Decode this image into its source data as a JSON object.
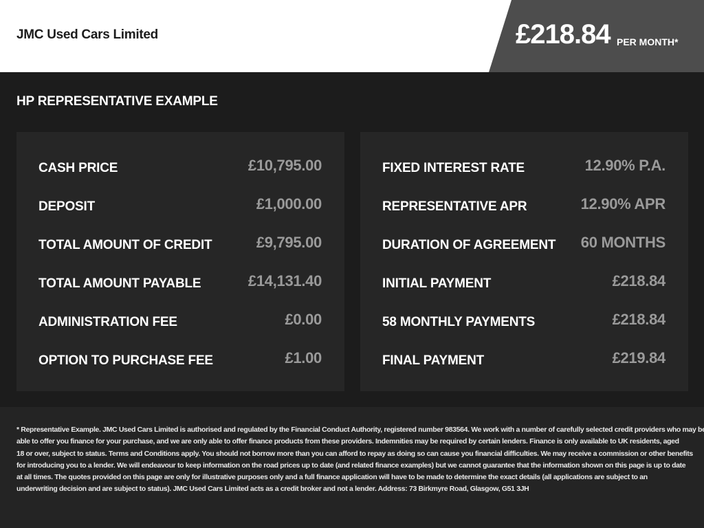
{
  "header": {
    "dealer_name": "JMC Used Cars Limited",
    "monthly_price": "£218.84",
    "per_month_label": "PER MONTH*"
  },
  "section_title": "HP REPRESENTATIVE EXAMPLE",
  "left_panel": [
    {
      "label": "CASH PRICE",
      "value": "£10,795.00"
    },
    {
      "label": "DEPOSIT",
      "value": "£1,000.00"
    },
    {
      "label": "TOTAL AMOUNT OF CREDIT",
      "value": "£9,795.00"
    },
    {
      "label": "TOTAL AMOUNT PAYABLE",
      "value": "£14,131.40"
    },
    {
      "label": "ADMINISTRATION FEE",
      "value": "£0.00"
    },
    {
      "label": "OPTION TO PURCHASE FEE",
      "value": "£1.00"
    }
  ],
  "right_panel": [
    {
      "label": "FIXED INTEREST RATE",
      "value": "12.90% P.A."
    },
    {
      "label": "REPRESENTATIVE APR",
      "value": "12.90% APR"
    },
    {
      "label": "DURATION OF AGREEMENT",
      "value": "60 MONTHS"
    },
    {
      "label": "INITIAL PAYMENT",
      "value": "£218.84"
    },
    {
      "label": "58 MONTHLY PAYMENTS",
      "value": "£218.84"
    },
    {
      "label": "FINAL PAYMENT",
      "value": "£219.84"
    }
  ],
  "disclaimer_lines": [
    "* Representative Example. JMC Used Cars Limited is authorised and regulated by the Financial Conduct Authority, registered number 983564. We work with a number of carefully selected credit providers who may be",
    "able to offer you finance for your purchase, and we are only able to offer finance products from these providers. Indemnities may be required by certain lenders. Finance is only available to UK residents, aged",
    "18 or over, subject to status. Terms and Conditions apply. You should not borrow more than you can afford to repay as doing so can cause you financial difficulties. We may receive a commission or other benefits",
    "for introducing you to a lender. We will endeavour to keep information on the road prices up to date (and related finance examples) but we cannot guarantee that the information shown on this page is up to date",
    "at all times. The quotes provided on this page are only for illustrative purposes only and a full finance application will have to be made to determine the exact details (all applications are subject to an",
    "underwriting decision and are subject to status). JMC Used Cars Limited acts as a credit broker and not a lender. Address: 73 Birkmyre Road, Glasgow, G51 3JH"
  ],
  "colors": {
    "background": "#1c1c1c",
    "panel": "#262626",
    "price_box": "#4d4d4d",
    "value_text": "#9a9a9a"
  }
}
